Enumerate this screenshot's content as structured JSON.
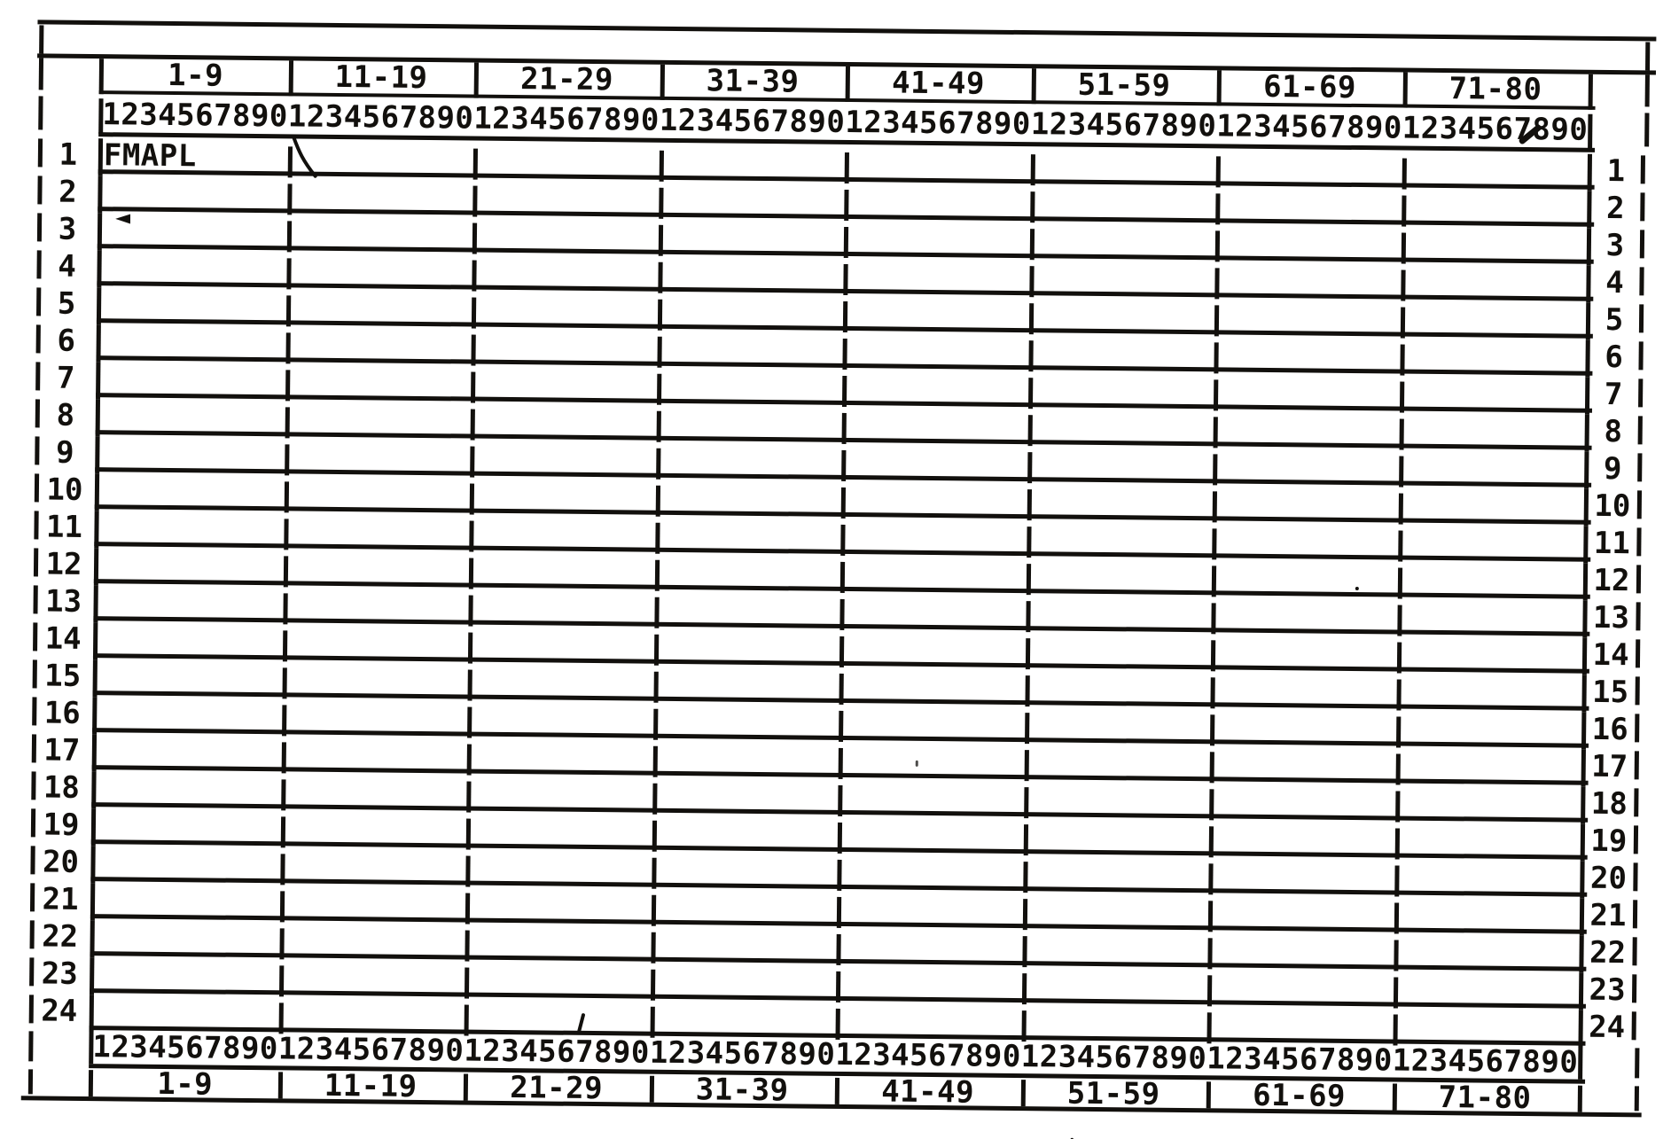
{
  "sheet": {
    "column_ranges": [
      "1-9",
      "11-19",
      "21-29",
      "31-39",
      "41-49",
      "51-59",
      "61-69",
      "71-80"
    ],
    "ruler": "12345678901234567890123456789012345678901234567890123456789012345678901234567890",
    "rows": [
      {
        "n": "1",
        "text": "FMAPL"
      },
      {
        "n": "2",
        "text": ""
      },
      {
        "n": "3",
        "text": ""
      },
      {
        "n": "4",
        "text": ""
      },
      {
        "n": "5",
        "text": ""
      },
      {
        "n": "6",
        "text": ""
      },
      {
        "n": "7",
        "text": ""
      },
      {
        "n": "8",
        "text": ""
      },
      {
        "n": "9",
        "text": ""
      },
      {
        "n": "10",
        "text": ""
      },
      {
        "n": "11",
        "text": ""
      },
      {
        "n": "12",
        "text": ""
      },
      {
        "n": "13",
        "text": ""
      },
      {
        "n": "14",
        "text": ""
      },
      {
        "n": "15",
        "text": ""
      },
      {
        "n": "16",
        "text": ""
      },
      {
        "n": "17",
        "text": ""
      },
      {
        "n": "18",
        "text": ""
      },
      {
        "n": "19",
        "text": ""
      },
      {
        "n": "20",
        "text": ""
      },
      {
        "n": "21",
        "text": ""
      },
      {
        "n": "22",
        "text": ""
      },
      {
        "n": "23",
        "text": ""
      },
      {
        "n": "24",
        "text": ""
      }
    ],
    "colors": {
      "ink": "#12100d",
      "paper": "#ffffff"
    },
    "artifacts": {
      "pen_stroke_row1": "curved pen stroke in row 1 near column 10",
      "arrow_mark": "small left-pointing pen arrowhead near row 3",
      "smudge_top_ruler": "ink smudge over digit 8 near column 78 of top ruler",
      "slash_row24": "stray slash mark in row 24",
      "dot_right": "small ink dot",
      "dot_bottom": "small ink dot below bottom border",
      "dot_mid": "faint ink speck"
    }
  }
}
